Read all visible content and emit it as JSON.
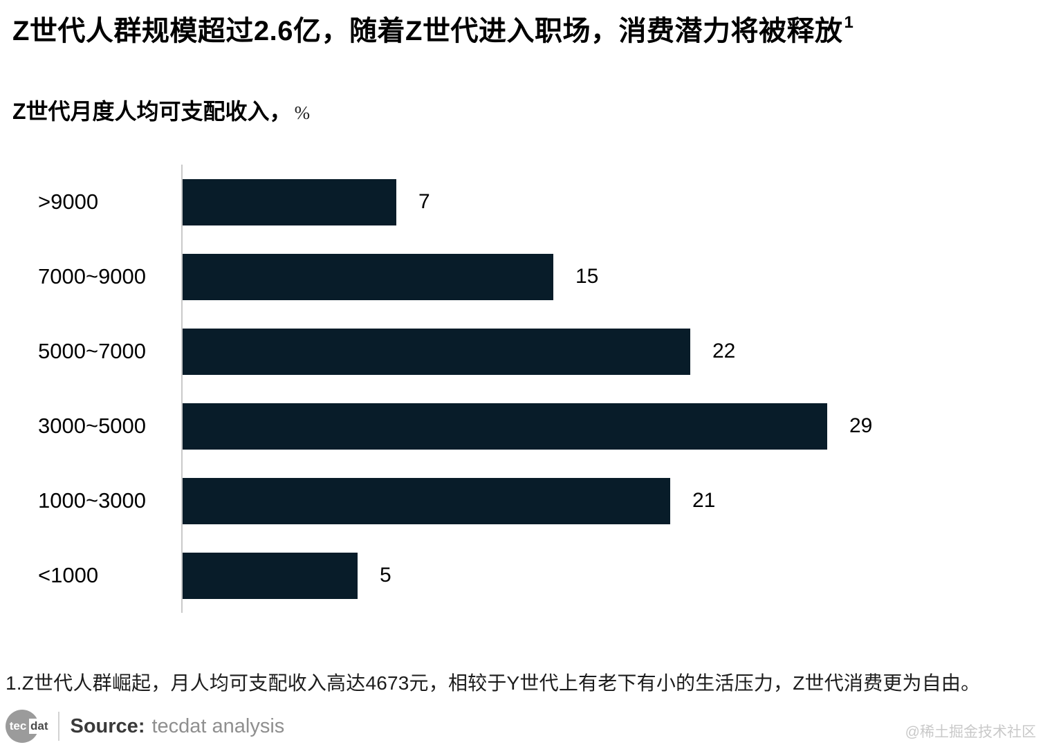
{
  "header": {
    "title": "Z世代人群规模超过2.6亿，随着Z世代进入职场，消费潜力将被释放",
    "title_superscript": "1"
  },
  "subtitle": {
    "text": "Z世代月度人均可支配收入，",
    "unit": "%"
  },
  "chart_data": {
    "type": "bar",
    "orientation": "horizontal",
    "title": "Z世代月度人均可支配收入，%",
    "unit": "%",
    "categories": [
      ">9000",
      "7000~9000",
      "5000~7000",
      "3000~5000",
      "1000~3000",
      "<1000"
    ],
    "values": [
      7,
      15,
      22,
      29,
      21,
      5
    ],
    "xlabel": "",
    "ylabel": "",
    "xlim": [
      0,
      29
    ],
    "grid": false,
    "legend": false,
    "value_labels": true,
    "bar_color": "#081c29",
    "axis_line_color": "#c9c9c9"
  },
  "footnote": {
    "text": "1.Z世代人群崛起，月人均可支配收入高达4673元，相较于Y世代上有老下有小的生活压力，Z世代消费更为自由。"
  },
  "source": {
    "label": "Source:",
    "text": "tecdat analysis",
    "logo": {
      "circle_text": "tec",
      "suffix_text": "dat"
    }
  },
  "watermark": {
    "text": "@稀土掘金技术社区"
  }
}
